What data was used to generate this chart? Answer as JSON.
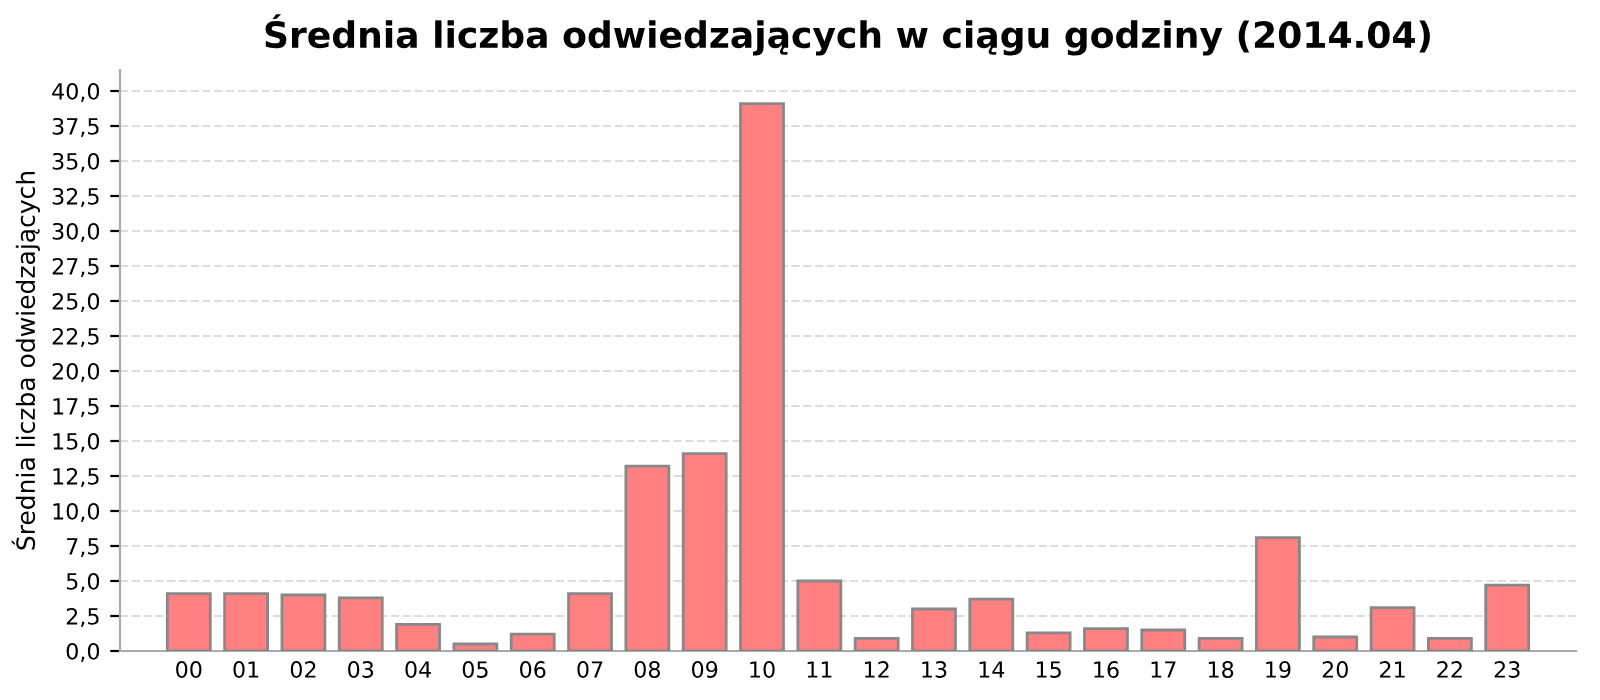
{
  "chart_data": {
    "type": "bar",
    "title": "Średnia liczba odwiedzających w ciągu godziny (2014.04)",
    "ylabel": "Średnia liczba odwiedzających",
    "categories": [
      "00",
      "01",
      "02",
      "03",
      "04",
      "05",
      "06",
      "07",
      "08",
      "09",
      "10",
      "11",
      "12",
      "13",
      "14",
      "15",
      "16",
      "17",
      "18",
      "19",
      "20",
      "21",
      "22",
      "23"
    ],
    "values": [
      4.1,
      4.1,
      4.0,
      3.8,
      1.9,
      0.5,
      1.2,
      4.1,
      13.2,
      14.1,
      39.1,
      5.0,
      0.9,
      3.0,
      3.7,
      1.3,
      1.6,
      1.5,
      0.9,
      8.1,
      1.0,
      3.1,
      0.9,
      4.7
    ],
    "color": "#ff8080",
    "ylim": [
      0,
      41.5
    ],
    "yticks": [
      {
        "value": 0,
        "label": "0,0"
      },
      {
        "value": 2.5,
        "label": "2,5"
      },
      {
        "value": 5,
        "label": "5,0"
      },
      {
        "value": 7.5,
        "label": "7,5"
      },
      {
        "value": 10,
        "label": "10,0"
      },
      {
        "value": 12.5,
        "label": "12,5"
      },
      {
        "value": 15,
        "label": "15,0"
      },
      {
        "value": 17.5,
        "label": "17,5"
      },
      {
        "value": 20,
        "label": "20,0"
      },
      {
        "value": 22.5,
        "label": "22,5"
      },
      {
        "value": 25,
        "label": "25,0"
      },
      {
        "value": 27.5,
        "label": "27,5"
      },
      {
        "value": 30,
        "label": "30,0"
      },
      {
        "value": 32.5,
        "label": "32,5"
      },
      {
        "value": 35,
        "label": "35,0"
      },
      {
        "value": 37.5,
        "label": "37,5"
      },
      {
        "value": 40,
        "label": "40,0"
      }
    ],
    "grid": "y"
  }
}
